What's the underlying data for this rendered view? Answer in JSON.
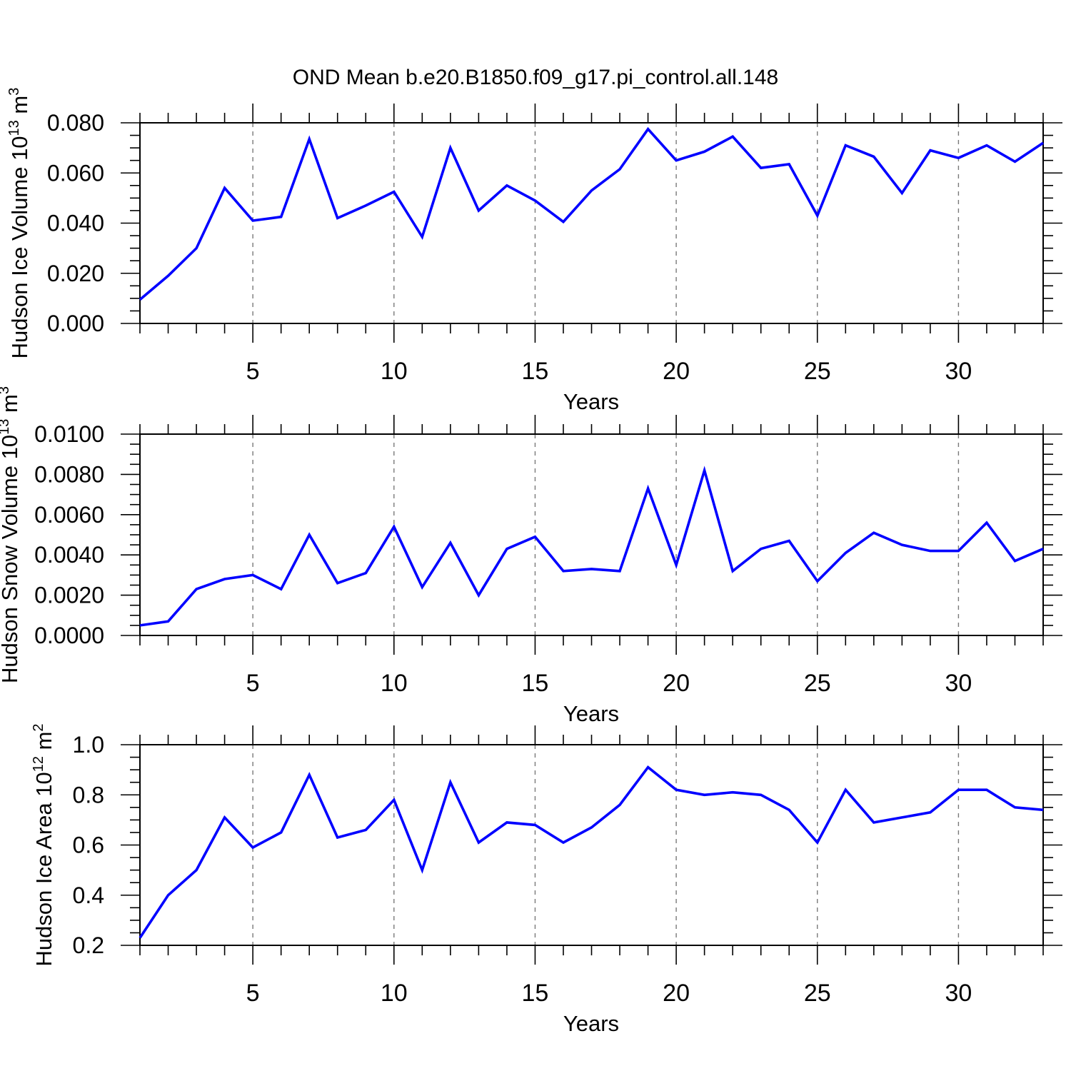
{
  "figure_title": "OND Mean b.e20.B1850.f09_g17.pi_control.all.148",
  "colors": {
    "line": "#0000FF",
    "axis": "#000000",
    "grid": "#7a7a7a",
    "background": "#ffffff"
  },
  "chart_data": [
    {
      "name": "hudson-ice-volume",
      "type": "line",
      "title": "",
      "ylabel_plain": "Hudson Ice Volume 10^13 m^3",
      "ylabel_parts": [
        [
          "t",
          "Hudson Ice Volume 10"
        ],
        [
          "s",
          "13"
        ],
        [
          "t",
          " m"
        ],
        [
          "s",
          "3"
        ]
      ],
      "xlabel": "Years",
      "ylim": [
        0.0,
        0.08
      ],
      "ytick_labels": [
        "0.000",
        "0.020",
        "0.040",
        "0.060",
        "0.080"
      ],
      "yminor_step": 0.005,
      "xlim": [
        1,
        33
      ],
      "x_major_ticks": [
        5,
        10,
        15,
        20,
        25,
        30
      ],
      "x_minor_step": 1,
      "grid": "vertical dashed at major x ticks",
      "legend": "none",
      "line_color": "#0000FF",
      "x": [
        1,
        2,
        3,
        4,
        5,
        6,
        7,
        8,
        9,
        10,
        11,
        12,
        13,
        14,
        15,
        16,
        17,
        18,
        19,
        20,
        21,
        22,
        23,
        24,
        25,
        26,
        27,
        28,
        29,
        30,
        31,
        32,
        33
      ],
      "values": [
        0.0095,
        0.019,
        0.03,
        0.054,
        0.041,
        0.0425,
        0.0735,
        0.042,
        0.047,
        0.0525,
        0.0345,
        0.07,
        0.045,
        0.055,
        0.049,
        0.0405,
        0.053,
        0.0615,
        0.0775,
        0.065,
        0.0685,
        0.0745,
        0.062,
        0.0635,
        0.043,
        0.071,
        0.0665,
        0.052,
        0.069,
        0.066,
        0.071,
        0.0645,
        0.072
      ]
    },
    {
      "name": "hudson-snow-volume",
      "type": "line",
      "title": "",
      "ylabel_plain": "Hudson Snow Volume 10^13 m^3",
      "ylabel_parts": [
        [
          "t",
          "Hudson Snow Volume 10"
        ],
        [
          "s",
          "13"
        ],
        [
          "t",
          " m"
        ],
        [
          "s",
          "3"
        ]
      ],
      "xlabel": "Years",
      "ylim": [
        0.0,
        0.01
      ],
      "ytick_labels": [
        "0.0000",
        "0.0020",
        "0.0040",
        "0.0060",
        "0.0080",
        "0.0100"
      ],
      "yminor_step": 0.0005,
      "xlim": [
        1,
        33
      ],
      "x_major_ticks": [
        5,
        10,
        15,
        20,
        25,
        30
      ],
      "x_minor_step": 1,
      "grid": "vertical dashed at major x ticks",
      "legend": "none",
      "line_color": "#0000FF",
      "x": [
        1,
        2,
        3,
        4,
        5,
        6,
        7,
        8,
        9,
        10,
        11,
        12,
        13,
        14,
        15,
        16,
        17,
        18,
        19,
        20,
        21,
        22,
        23,
        24,
        25,
        26,
        27,
        28,
        29,
        30,
        31,
        32,
        33
      ],
      "values": [
        0.0005,
        0.0007,
        0.0023,
        0.0028,
        0.003,
        0.0023,
        0.005,
        0.0026,
        0.0031,
        0.0054,
        0.0024,
        0.0046,
        0.002,
        0.0043,
        0.0049,
        0.0032,
        0.0033,
        0.0032,
        0.0073,
        0.0035,
        0.0082,
        0.0032,
        0.0043,
        0.0047,
        0.0027,
        0.0041,
        0.0051,
        0.0045,
        0.0042,
        0.0042,
        0.0056,
        0.0037,
        0.0043
      ]
    },
    {
      "name": "hudson-ice-area",
      "type": "line",
      "title": "",
      "ylabel_plain": "Hudson Ice Area 10^12 m^2",
      "ylabel_parts": [
        [
          "t",
          "Hudson Ice Area 10"
        ],
        [
          "s",
          "12"
        ],
        [
          "t",
          " m"
        ],
        [
          "s",
          "2"
        ]
      ],
      "xlabel": "Years",
      "ylim": [
        0.2,
        1.0
      ],
      "ytick_labels": [
        "0.2",
        "0.4",
        "0.6",
        "0.8",
        "1.0"
      ],
      "yminor_step": 0.05,
      "xlim": [
        1,
        33
      ],
      "x_major_ticks": [
        5,
        10,
        15,
        20,
        25,
        30
      ],
      "x_minor_step": 1,
      "grid": "vertical dashed at major x ticks",
      "legend": "none",
      "line_color": "#0000FF",
      "x": [
        1,
        2,
        3,
        4,
        5,
        6,
        7,
        8,
        9,
        10,
        11,
        12,
        13,
        14,
        15,
        16,
        17,
        18,
        19,
        20,
        21,
        22,
        23,
        24,
        25,
        26,
        27,
        28,
        29,
        30,
        31,
        32,
        33
      ],
      "values": [
        0.23,
        0.4,
        0.5,
        0.71,
        0.59,
        0.65,
        0.88,
        0.63,
        0.66,
        0.78,
        0.5,
        0.85,
        0.61,
        0.69,
        0.68,
        0.61,
        0.67,
        0.76,
        0.91,
        0.82,
        0.8,
        0.81,
        0.8,
        0.74,
        0.61,
        0.82,
        0.69,
        0.71,
        0.73,
        0.82,
        0.82,
        0.75,
        0.74
      ]
    }
  ]
}
